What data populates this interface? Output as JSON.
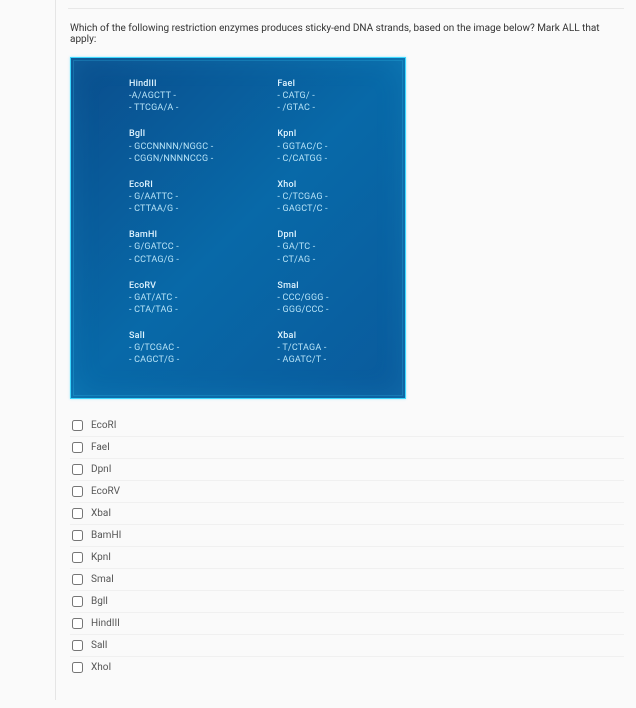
{
  "question": {
    "text": "Which of the following restriction enzymes produces sticky-end DNA strands, based on the image below? Mark ALL that apply:"
  },
  "panel": {
    "background_gradient": [
      "#0a4d8c",
      "#0869a8",
      "#0a5a9c"
    ],
    "border_color": "#3dd8ff",
    "text_color": "#dff4ff",
    "seq_color": "#b8e4f8",
    "left": [
      {
        "name": "HindIII",
        "seq1": "-A/AGCTT -",
        "seq2": "- TTCGA/A -"
      },
      {
        "name": "BglI",
        "seq1": "- GCCNNNN/NGGC -",
        "seq2": "- CGGN/NNNNCCG -"
      },
      {
        "name": "EcoRI",
        "seq1": "- G/AATTC -",
        "seq2": "- CTTAA/G -"
      },
      {
        "name": "BamHI",
        "seq1": "- G/GATCC -",
        "seq2": "- CCTAG/G -"
      },
      {
        "name": "EcoRV",
        "seq1": "- GAT/ATC -",
        "seq2": "- CTA/TAG -"
      },
      {
        "name": "SalI",
        "seq1": "- G/TCGAC -",
        "seq2": "- CAGCT/G -"
      }
    ],
    "right": [
      {
        "name": "FaeI",
        "seq1": "- CATG/ -",
        "seq2": "- /GTAC -"
      },
      {
        "name": "KpnI",
        "seq1": "- GGTAC/C -",
        "seq2": "- C/CATGG -"
      },
      {
        "name": "XhoI",
        "seq1": "- C/TCGAG -",
        "seq2": "- GAGCT/C -"
      },
      {
        "name": "DpnI",
        "seq1": "- GA/TC -",
        "seq2": "- CT/AG -"
      },
      {
        "name": "SmaI",
        "seq1": "- CCC/GGG -",
        "seq2": "- GGG/CCC -"
      },
      {
        "name": "XbaI",
        "seq1": "- T/CTAGA -",
        "seq2": "- AGATC/T -"
      }
    ]
  },
  "options": [
    {
      "label": "EcoRI"
    },
    {
      "label": "FaeI"
    },
    {
      "label": "DpnI"
    },
    {
      "label": "EcoRV"
    },
    {
      "label": "XbaI"
    },
    {
      "label": "BamHI"
    },
    {
      "label": "KpnI"
    },
    {
      "label": "SmaI"
    },
    {
      "label": "BglI"
    },
    {
      "label": "HindIII"
    },
    {
      "label": "SalI"
    },
    {
      "label": "XhoI"
    }
  ]
}
